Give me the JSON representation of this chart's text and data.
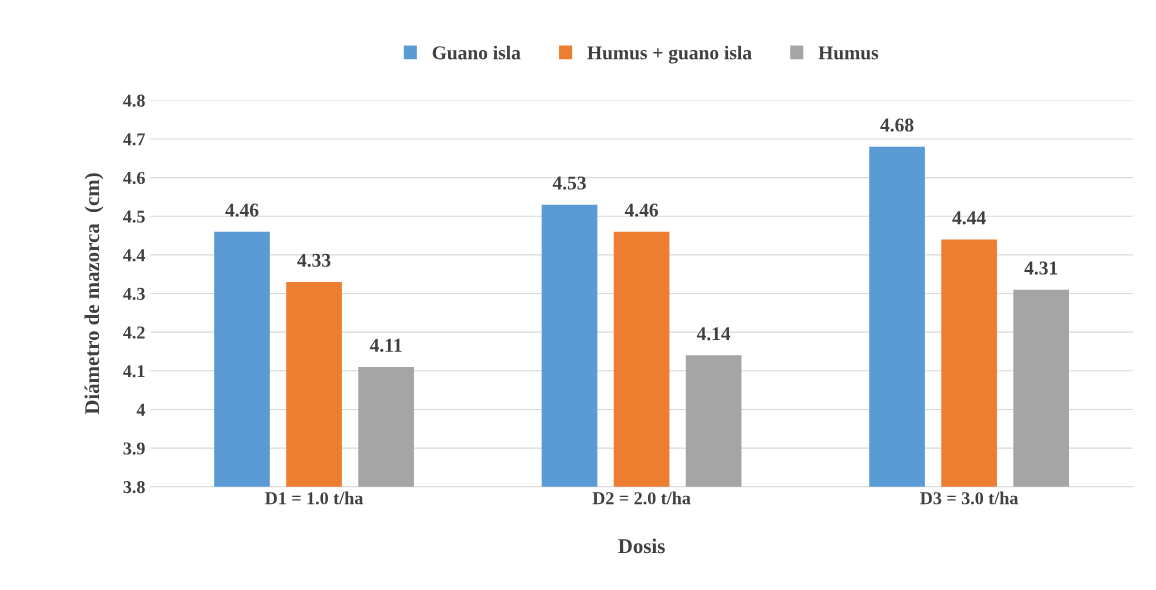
{
  "chart_data": {
    "type": "bar",
    "xlabel": "Dosis",
    "ylabel": "Diámetro de mazorca  (cm)",
    "categories": [
      "D1 = 1.0 t/ha",
      "D2 = 2.0 t/ha",
      "D3 = 3.0 t/ha"
    ],
    "series": [
      {
        "name": "Guano isla",
        "color": "#5b9bd5",
        "values": [
          4.46,
          4.53,
          4.68
        ]
      },
      {
        "name": "Humus + guano isla",
        "color": "#ed7d31",
        "values": [
          4.33,
          4.46,
          4.44
        ]
      },
      {
        "name": "Humus",
        "color": "#a5a5a5",
        "values": [
          4.11,
          4.14,
          4.31
        ]
      }
    ],
    "ylim": [
      3.8,
      4.8
    ],
    "yticks": [
      3.8,
      3.9,
      4,
      4.1,
      4.2,
      4.3,
      4.4,
      4.5,
      4.6,
      4.7,
      4.8
    ],
    "grid": "y",
    "legend": "top",
    "data_labels": true
  }
}
